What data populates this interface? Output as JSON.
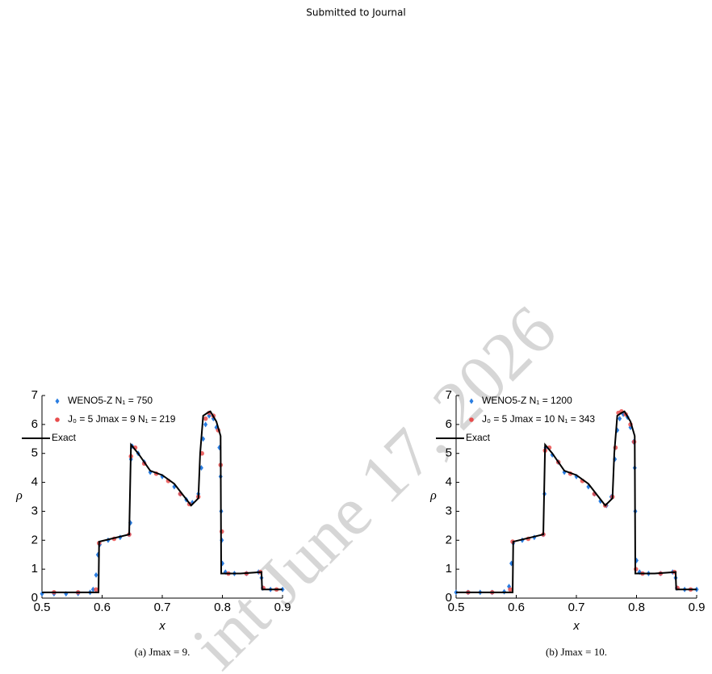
{
  "header": {
    "title": "Submitted to Journal"
  },
  "watermark": "int June 17, 2026",
  "chart_data": [
    {
      "type": "line",
      "caption": "(a) Jmax = 9.",
      "xlabel": "x",
      "ylabel": "ρ",
      "xlim": [
        0.5,
        0.9
      ],
      "ylim": [
        0,
        7
      ],
      "xticks": [
        0.5,
        0.6,
        0.7,
        0.8,
        0.9
      ],
      "yticks": [
        0,
        1,
        2,
        3,
        4,
        5,
        6,
        7
      ],
      "legend": "upper left",
      "series": [
        {
          "name": "WENO5-Z N₁ = 750",
          "color": "#2a7de1",
          "marker": "diamond",
          "x": [
            0.5,
            0.52,
            0.54,
            0.56,
            0.58,
            0.585,
            0.59,
            0.593,
            0.596,
            0.61,
            0.63,
            0.645,
            0.647,
            0.648,
            0.65,
            0.66,
            0.67,
            0.68,
            0.7,
            0.72,
            0.73,
            0.74,
            0.75,
            0.76,
            0.765,
            0.768,
            0.772,
            0.778,
            0.785,
            0.79,
            0.795,
            0.797,
            0.798,
            0.799,
            0.8,
            0.805,
            0.82,
            0.84,
            0.86,
            0.865,
            0.867,
            0.88,
            0.9
          ],
          "values": [
            0.15,
            0.15,
            0.15,
            0.16,
            0.2,
            0.3,
            0.8,
            1.5,
            1.85,
            2.0,
            2.1,
            2.2,
            2.6,
            4.8,
            5.25,
            5.0,
            4.7,
            4.35,
            4.2,
            3.85,
            3.6,
            3.4,
            3.3,
            3.6,
            4.5,
            5.5,
            6.0,
            6.3,
            6.2,
            5.9,
            5.2,
            4.2,
            3.0,
            2.0,
            1.2,
            0.9,
            0.85,
            0.85,
            0.9,
            0.7,
            0.35,
            0.3,
            0.3
          ]
        },
        {
          "name": "J₀ = 5 Jmax = 9 N₁ = 219",
          "color": "#e84c4c",
          "marker": "circle",
          "x": [
            0.52,
            0.56,
            0.59,
            0.595,
            0.62,
            0.645,
            0.648,
            0.655,
            0.67,
            0.69,
            0.71,
            0.73,
            0.745,
            0.76,
            0.766,
            0.772,
            0.778,
            0.785,
            0.793,
            0.797,
            0.799,
            0.81,
            0.84,
            0.863,
            0.868,
            0.89
          ],
          "values": [
            0.2,
            0.2,
            0.3,
            1.9,
            2.05,
            2.2,
            4.9,
            5.2,
            4.65,
            4.3,
            4.05,
            3.6,
            3.25,
            3.5,
            5.0,
            6.2,
            6.4,
            6.3,
            5.8,
            4.6,
            2.3,
            0.85,
            0.85,
            0.9,
            0.35,
            0.3
          ]
        },
        {
          "name": "Exact",
          "color": "#000000",
          "marker": "line",
          "x": [
            0.5,
            0.594,
            0.595,
            0.645,
            0.648,
            0.66,
            0.68,
            0.7,
            0.72,
            0.735,
            0.748,
            0.76,
            0.763,
            0.768,
            0.775,
            0.78,
            0.79,
            0.797,
            0.798,
            0.83,
            0.865,
            0.866,
            0.9
          ],
          "values": [
            0.2,
            0.2,
            1.95,
            2.2,
            5.3,
            5.0,
            4.4,
            4.25,
            3.95,
            3.55,
            3.2,
            3.45,
            5.0,
            6.3,
            6.4,
            6.45,
            6.1,
            5.6,
            0.85,
            0.85,
            0.9,
            0.3,
            0.3
          ]
        }
      ]
    },
    {
      "type": "line",
      "caption": "(b) Jmax = 10.",
      "xlabel": "x",
      "ylabel": "ρ",
      "xlim": [
        0.5,
        0.9
      ],
      "ylim": [
        0,
        7
      ],
      "xticks": [
        0.5,
        0.6,
        0.7,
        0.8,
        0.9
      ],
      "yticks": [
        0,
        1,
        2,
        3,
        4,
        5,
        6,
        7
      ],
      "legend": "upper left",
      "series": [
        {
          "name": "WENO5-Z N₁ = 1200",
          "color": "#2a7de1",
          "marker": "diamond",
          "x": [
            0.5,
            0.52,
            0.54,
            0.56,
            0.58,
            0.588,
            0.592,
            0.595,
            0.61,
            0.63,
            0.645,
            0.647,
            0.649,
            0.66,
            0.67,
            0.68,
            0.7,
            0.72,
            0.73,
            0.74,
            0.75,
            0.758,
            0.764,
            0.768,
            0.772,
            0.778,
            0.785,
            0.79,
            0.795,
            0.797,
            0.798,
            0.8,
            0.805,
            0.82,
            0.84,
            0.86,
            0.865,
            0.867,
            0.88,
            0.9
          ],
          "values": [
            0.2,
            0.2,
            0.2,
            0.2,
            0.22,
            0.4,
            1.2,
            1.9,
            2.0,
            2.1,
            2.2,
            3.6,
            5.2,
            4.95,
            4.7,
            4.35,
            4.2,
            3.85,
            3.6,
            3.35,
            3.2,
            3.5,
            4.8,
            5.8,
            6.2,
            6.35,
            6.25,
            5.9,
            5.4,
            4.5,
            3.0,
            1.3,
            0.9,
            0.85,
            0.85,
            0.9,
            0.7,
            0.35,
            0.3,
            0.3
          ]
        },
        {
          "name": "J₀ = 5 Jmax = 10 N₁ = 343",
          "color": "#e84c4c",
          "marker": "circle",
          "x": [
            0.52,
            0.56,
            0.59,
            0.594,
            0.62,
            0.645,
            0.648,
            0.655,
            0.67,
            0.69,
            0.71,
            0.73,
            0.748,
            0.76,
            0.765,
            0.77,
            0.775,
            0.782,
            0.79,
            0.796,
            0.799,
            0.81,
            0.84,
            0.863,
            0.868,
            0.89
          ],
          "values": [
            0.2,
            0.2,
            0.3,
            1.95,
            2.05,
            2.2,
            5.1,
            5.2,
            4.7,
            4.3,
            4.05,
            3.6,
            3.2,
            3.5,
            5.2,
            6.4,
            6.45,
            6.35,
            6.0,
            5.4,
            1.0,
            0.85,
            0.85,
            0.9,
            0.35,
            0.3
          ]
        },
        {
          "name": "Exact",
          "color": "#000000",
          "marker": "line",
          "x": [
            0.5,
            0.594,
            0.595,
            0.645,
            0.648,
            0.66,
            0.68,
            0.7,
            0.72,
            0.735,
            0.748,
            0.76,
            0.763,
            0.768,
            0.775,
            0.78,
            0.79,
            0.797,
            0.798,
            0.83,
            0.865,
            0.866,
            0.9
          ],
          "values": [
            0.2,
            0.2,
            1.95,
            2.2,
            5.3,
            5.0,
            4.4,
            4.25,
            3.95,
            3.55,
            3.2,
            3.45,
            5.0,
            6.3,
            6.4,
            6.45,
            6.1,
            5.6,
            0.85,
            0.85,
            0.9,
            0.3,
            0.3
          ]
        }
      ]
    }
  ]
}
